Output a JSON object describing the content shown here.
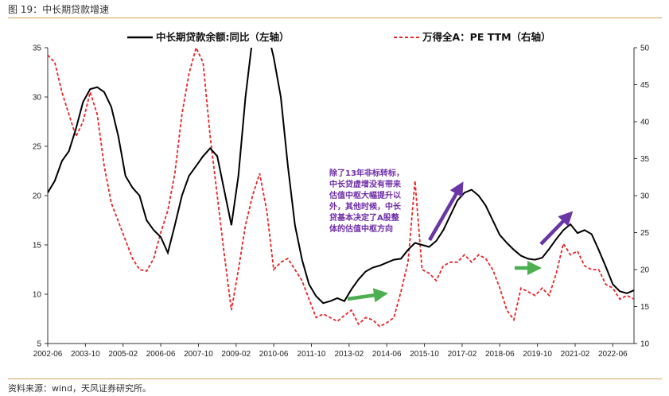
{
  "figure_title": "图 19：中长期贷款增速",
  "source": "资料来源：wind，天风证券研究所。",
  "colors": {
    "loan_line": "#000000",
    "pe_line": "#e8262a",
    "annot_text": "#6f2da8",
    "purple_arrow": "#6a35a5",
    "green_arrow": "#4caf50",
    "rule": "#d4a35a"
  },
  "chart_data": {
    "type": "line",
    "title": "",
    "x_tick_labels": [
      "2002-06",
      "2003-10",
      "2005-02",
      "2006-06",
      "2007-10",
      "2009-02",
      "2010-06",
      "2011-10",
      "2013-02",
      "2014-06",
      "2015-10",
      "2017-02",
      "2018-06",
      "2019-10",
      "2021-02",
      "2022-06"
    ],
    "x_range": [
      "2002-06",
      "2023-03"
    ],
    "left_axis": {
      "ylim": [
        5,
        35
      ],
      "ticks": [
        "5",
        "10",
        "15",
        "20",
        "25",
        "30",
        "35"
      ]
    },
    "right_axis": {
      "ylim": [
        10,
        50
      ],
      "ticks": [
        "10",
        "15",
        "20",
        "25",
        "30",
        "35",
        "40",
        "45",
        "50"
      ]
    },
    "grid": false,
    "legend_position": "top",
    "annotation": "除了13年非标转标，中长贷虚增没有带来估值中枢大幅提升以外，其他时候，中长贷基本决定了A股整体的估值中枢方向",
    "series": [
      {
        "name": "中长期贷款余额:同比（左轴）",
        "axis": "left",
        "style": "solid",
        "points": [
          [
            "2002-06",
            20.3
          ],
          [
            "2002-09",
            21.5
          ],
          [
            "2002-12",
            23.5
          ],
          [
            "2003-03",
            24.5
          ],
          [
            "2003-06",
            26.8
          ],
          [
            "2003-09",
            29.5
          ],
          [
            "2003-12",
            30.8
          ],
          [
            "2004-03",
            31.0
          ],
          [
            "2004-06",
            30.5
          ],
          [
            "2004-09",
            29.0
          ],
          [
            "2004-12",
            26.0
          ],
          [
            "2005-03",
            22.0
          ],
          [
            "2005-06",
            20.8
          ],
          [
            "2005-09",
            20.0
          ],
          [
            "2005-12",
            17.5
          ],
          [
            "2006-03",
            16.5
          ],
          [
            "2006-06",
            15.8
          ],
          [
            "2006-09",
            14.2
          ],
          [
            "2006-12",
            17.0
          ],
          [
            "2007-03",
            20.0
          ],
          [
            "2007-06",
            22.0
          ],
          [
            "2007-09",
            23.0
          ],
          [
            "2007-12",
            24.0
          ],
          [
            "2008-03",
            24.8
          ],
          [
            "2008-06",
            24.0
          ],
          [
            "2008-09",
            20.5
          ],
          [
            "2008-12",
            17.0
          ],
          [
            "2009-03",
            22.0
          ],
          [
            "2009-06",
            30.0
          ],
          [
            "2009-09",
            36.0
          ],
          [
            "2009-12",
            38.0
          ],
          [
            "2010-03",
            37.0
          ],
          [
            "2010-06",
            34.0
          ],
          [
            "2010-09",
            30.0
          ],
          [
            "2010-12",
            23.0
          ],
          [
            "2011-03",
            17.0
          ],
          [
            "2011-06",
            13.5
          ],
          [
            "2011-09",
            11.0
          ],
          [
            "2011-12",
            9.8
          ],
          [
            "2012-03",
            9.1
          ],
          [
            "2012-06",
            9.3
          ],
          [
            "2012-09",
            9.6
          ],
          [
            "2012-12",
            9.3
          ],
          [
            "2013-03",
            10.5
          ],
          [
            "2013-06",
            11.5
          ],
          [
            "2013-09",
            12.3
          ],
          [
            "2013-12",
            12.7
          ],
          [
            "2014-03",
            12.9
          ],
          [
            "2014-06",
            13.2
          ],
          [
            "2014-09",
            13.5
          ],
          [
            "2014-12",
            13.6
          ],
          [
            "2015-03",
            14.5
          ],
          [
            "2015-06",
            15.2
          ],
          [
            "2015-09",
            15.0
          ],
          [
            "2015-12",
            14.8
          ],
          [
            "2016-03",
            15.4
          ],
          [
            "2016-06",
            16.5
          ],
          [
            "2016-09",
            18.0
          ],
          [
            "2016-12",
            19.5
          ],
          [
            "2017-03",
            20.3
          ],
          [
            "2017-06",
            20.6
          ],
          [
            "2017-09",
            20.0
          ],
          [
            "2017-12",
            19.0
          ],
          [
            "2018-03",
            17.5
          ],
          [
            "2018-06",
            16.0
          ],
          [
            "2018-09",
            15.2
          ],
          [
            "2018-12",
            14.5
          ],
          [
            "2019-03",
            13.9
          ],
          [
            "2019-06",
            13.6
          ],
          [
            "2019-09",
            13.5
          ],
          [
            "2019-12",
            13.7
          ],
          [
            "2020-03",
            14.6
          ],
          [
            "2020-06",
            15.6
          ],
          [
            "2020-09",
            16.5
          ],
          [
            "2020-12",
            17.1
          ],
          [
            "2021-03",
            16.2
          ],
          [
            "2021-06",
            16.5
          ],
          [
            "2021-09",
            16.1
          ],
          [
            "2021-12",
            14.5
          ],
          [
            "2022-03",
            12.8
          ],
          [
            "2022-06",
            11.0
          ],
          [
            "2022-09",
            10.3
          ],
          [
            "2022-12",
            10.1
          ],
          [
            "2023-03",
            10.4
          ]
        ]
      },
      {
        "name": "万得全A：PE TTM（右轴）",
        "axis": "right",
        "style": "dashed",
        "points": [
          [
            "2002-06",
            49.0
          ],
          [
            "2002-09",
            48.0
          ],
          [
            "2002-12",
            44.0
          ],
          [
            "2003-03",
            41.0
          ],
          [
            "2003-06",
            38.0
          ],
          [
            "2003-09",
            40.0
          ],
          [
            "2003-12",
            44.0
          ],
          [
            "2004-03",
            41.0
          ],
          [
            "2004-06",
            34.0
          ],
          [
            "2004-09",
            29.0
          ],
          [
            "2004-12",
            26.5
          ],
          [
            "2005-03",
            24.0
          ],
          [
            "2005-06",
            21.5
          ],
          [
            "2005-09",
            20.0
          ],
          [
            "2005-12",
            19.8
          ],
          [
            "2006-03",
            21.5
          ],
          [
            "2006-06",
            25.0
          ],
          [
            "2006-09",
            28.0
          ],
          [
            "2006-12",
            33.0
          ],
          [
            "2007-03",
            41.0
          ],
          [
            "2007-06",
            46.5
          ],
          [
            "2007-09",
            50.0
          ],
          [
            "2007-12",
            48.0
          ],
          [
            "2008-03",
            38.0
          ],
          [
            "2008-06",
            30.0
          ],
          [
            "2008-09",
            22.0
          ],
          [
            "2008-12",
            14.5
          ],
          [
            "2009-03",
            20.0
          ],
          [
            "2009-06",
            26.0
          ],
          [
            "2009-09",
            30.0
          ],
          [
            "2009-12",
            33.0
          ],
          [
            "2010-03",
            28.0
          ],
          [
            "2010-06",
            20.0
          ],
          [
            "2010-09",
            21.0
          ],
          [
            "2010-12",
            21.5
          ],
          [
            "2011-03",
            20.0
          ],
          [
            "2011-06",
            18.5
          ],
          [
            "2011-09",
            16.0
          ],
          [
            "2011-12",
            13.5
          ],
          [
            "2012-03",
            14.0
          ],
          [
            "2012-06",
            13.5
          ],
          [
            "2012-09",
            13.0
          ],
          [
            "2012-12",
            13.8
          ],
          [
            "2013-03",
            14.5
          ],
          [
            "2013-06",
            12.6
          ],
          [
            "2013-09",
            13.5
          ],
          [
            "2013-12",
            13.2
          ],
          [
            "2014-03",
            12.3
          ],
          [
            "2014-06",
            12.8
          ],
          [
            "2014-09",
            13.5
          ],
          [
            "2014-12",
            17.0
          ],
          [
            "2015-03",
            21.0
          ],
          [
            "2015-06",
            32.0
          ],
          [
            "2015-09",
            20.0
          ],
          [
            "2015-12",
            19.5
          ],
          [
            "2016-03",
            18.5
          ],
          [
            "2016-06",
            20.5
          ],
          [
            "2016-09",
            21.0
          ],
          [
            "2016-12",
            21.0
          ],
          [
            "2017-03",
            22.0
          ],
          [
            "2017-06",
            21.0
          ],
          [
            "2017-09",
            22.0
          ],
          [
            "2017-12",
            21.5
          ],
          [
            "2018-03",
            20.0
          ],
          [
            "2018-06",
            17.5
          ],
          [
            "2018-09",
            14.5
          ],
          [
            "2018-12",
            13.2
          ],
          [
            "2019-03",
            17.5
          ],
          [
            "2019-06",
            17.0
          ],
          [
            "2019-09",
            16.5
          ],
          [
            "2019-12",
            17.5
          ],
          [
            "2020-03",
            16.5
          ],
          [
            "2020-06",
            19.5
          ],
          [
            "2020-09",
            23.5
          ],
          [
            "2020-12",
            22.0
          ],
          [
            "2021-03",
            22.5
          ],
          [
            "2021-06",
            20.5
          ],
          [
            "2021-09",
            20.0
          ],
          [
            "2021-12",
            20.0
          ],
          [
            "2022-03",
            18.0
          ],
          [
            "2022-06",
            17.5
          ],
          [
            "2022-09",
            16.0
          ],
          [
            "2022-12",
            16.5
          ],
          [
            "2023-03",
            16.0
          ]
        ]
      }
    ]
  }
}
